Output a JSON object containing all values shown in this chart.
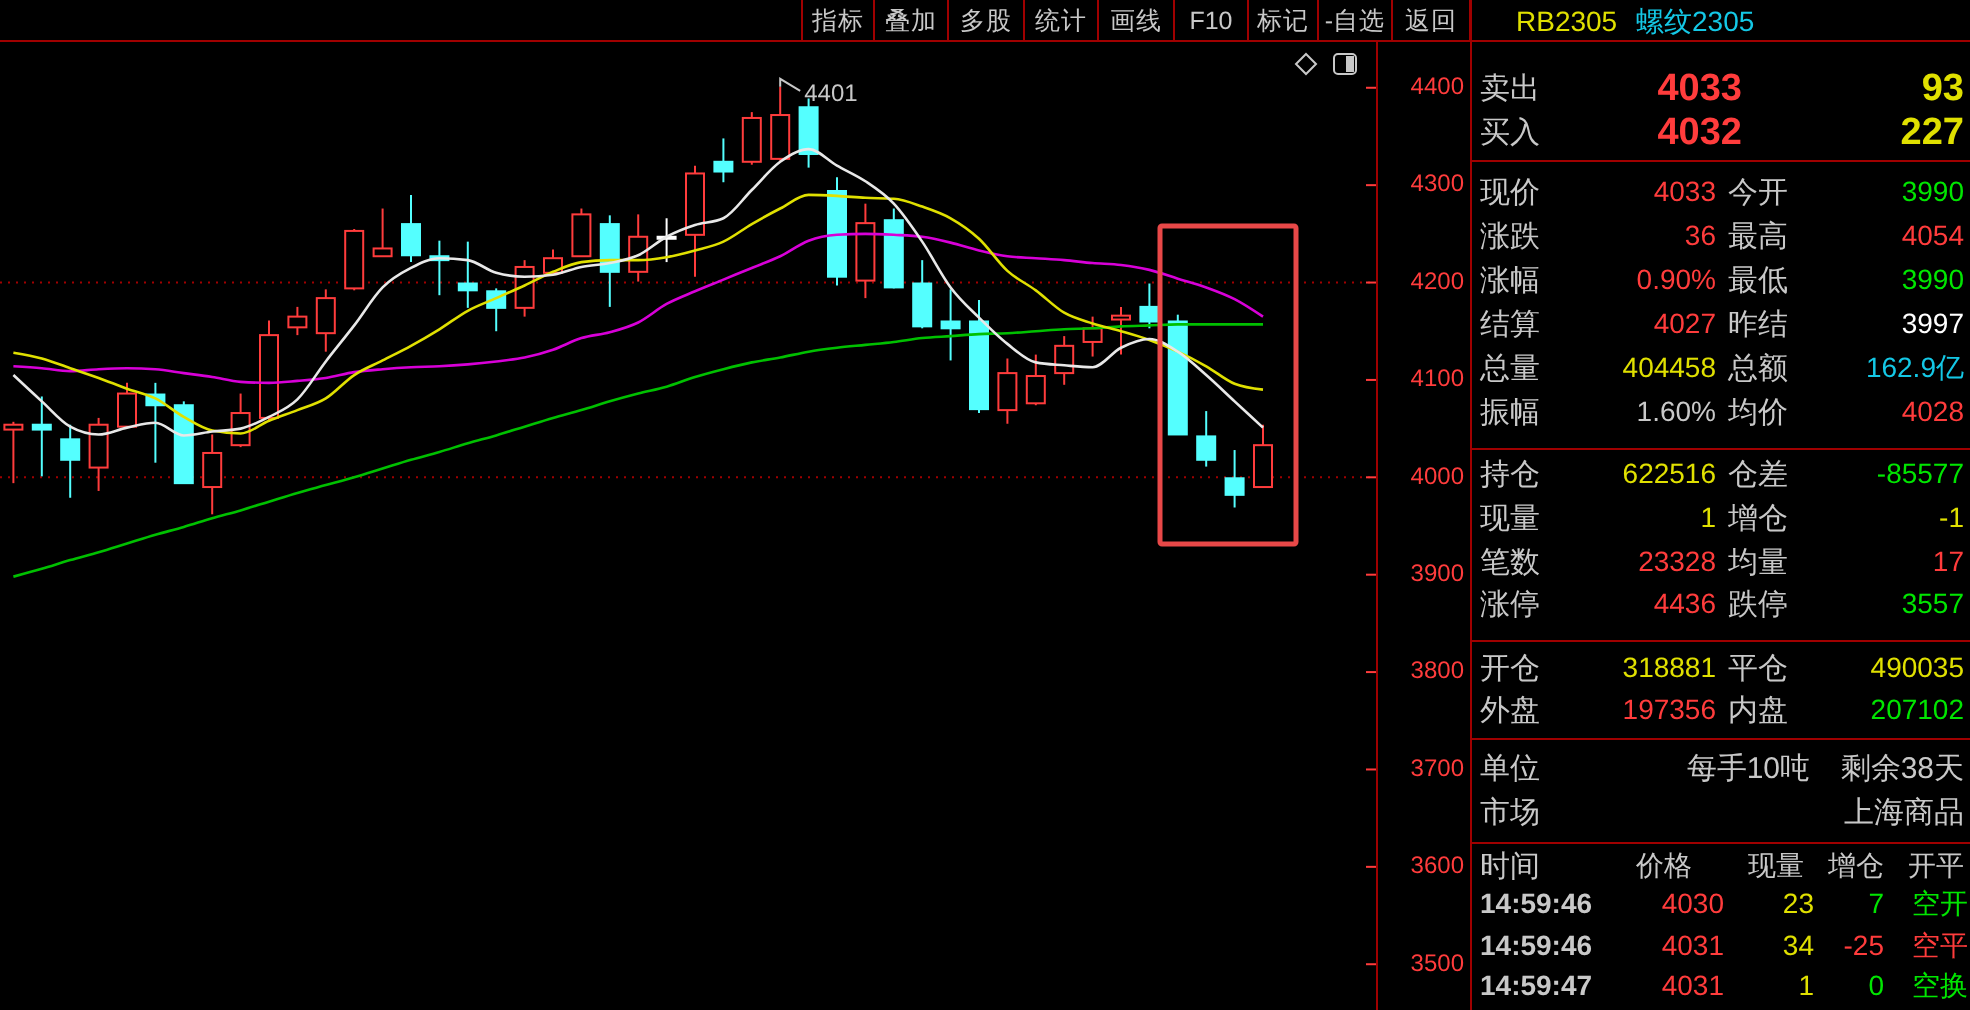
{
  "chart_data": [
    {
      "type": "candlestick",
      "categories": [
        null,
        null,
        null,
        null,
        null,
        null,
        null,
        null,
        null,
        null,
        null,
        null,
        null,
        null,
        null,
        null,
        null,
        null,
        null,
        null,
        null,
        null,
        null,
        null,
        null,
        null,
        null,
        null,
        null,
        null,
        null,
        null,
        null,
        null,
        null,
        null,
        null,
        null,
        null,
        null,
        null,
        null,
        null,
        null,
        null
      ],
      "ohlc": [
        [
          4049,
          4057,
          3994,
          4054
        ],
        [
          4054,
          4083,
          4001,
          4049
        ],
        [
          4039,
          4054,
          3979,
          4018
        ],
        [
          4010,
          4061,
          3986,
          4054
        ],
        [
          4052,
          4097,
          4052,
          4086
        ],
        [
          4085,
          4097,
          4015,
          4074
        ],
        [
          4074,
          4078,
          3994,
          3994
        ],
        [
          3990,
          4044,
          3962,
          4025
        ],
        [
          4033,
          4086,
          4031,
          4066
        ],
        [
          4061,
          4161,
          4057,
          4146
        ],
        [
          4154,
          4175,
          4146,
          4165
        ],
        [
          4148,
          4193,
          4129,
          4184
        ],
        [
          4194,
          4255,
          4192,
          4253
        ],
        [
          4227,
          4276,
          4227,
          4235
        ],
        [
          4260,
          4290,
          4221,
          4228
        ],
        [
          4227,
          4243,
          4187,
          4223
        ],
        [
          4199,
          4242,
          4174,
          4192
        ],
        [
          4191,
          4194,
          4150,
          4174
        ],
        [
          4174,
          4223,
          4165,
          4216
        ],
        [
          4210,
          4234,
          4208,
          4225
        ],
        [
          4227,
          4276,
          4227,
          4270
        ],
        [
          4260,
          4269,
          4175,
          4211
        ],
        [
          4211,
          4270,
          4201,
          4247
        ],
        [
          4247,
          4266,
          4221,
          4247
        ],
        [
          4249,
          4320,
          4206,
          4312
        ],
        [
          4324,
          4348,
          4303,
          4314
        ],
        [
          4324,
          4375,
          4321,
          4369
        ],
        [
          4327,
          4401,
          4325,
          4372
        ],
        [
          4380,
          4389,
          4318,
          4332
        ],
        [
          4294,
          4308,
          4197,
          4206
        ],
        [
          4202,
          4281,
          4184,
          4261
        ],
        [
          4264,
          4276,
          4194,
          4195
        ],
        [
          4199,
          4223,
          4153,
          4155
        ],
        [
          4160,
          4193,
          4120,
          4153
        ],
        [
          4160,
          4182,
          4066,
          4070
        ],
        [
          4069,
          4122,
          4055,
          4107
        ],
        [
          4076,
          4126,
          4074,
          4104
        ],
        [
          4107,
          4145,
          4095,
          4135
        ],
        [
          4139,
          4165,
          4124,
          4153
        ],
        [
          4162,
          4175,
          4126,
          4166
        ],
        [
          4175,
          4199,
          4153,
          4160
        ],
        [
          4160,
          4167,
          4044,
          4044
        ],
        [
          4042,
          4068,
          4011,
          4018
        ],
        [
          3999,
          4028,
          3969,
          3982
        ],
        [
          3990,
          4054,
          3990,
          4033
        ]
      ],
      "series": [
        {
          "type": "line",
          "color": "#00c000",
          "values": [
            3898,
            3906,
            3915,
            3923,
            3932,
            3941,
            3949,
            3958,
            3966,
            3975,
            3984,
            3992,
            4000,
            4009,
            4018,
            4026,
            4035,
            4043,
            4052,
            4061,
            4069,
            4078,
            4086,
            4093,
            4103,
            4111,
            4118,
            4123,
            4129,
            4133,
            4136,
            4139,
            4143,
            4145,
            4147,
            4148,
            4150,
            4152,
            4153,
            4155,
            4156,
            4157,
            4157,
            4157,
            4157
          ]
        },
        {
          "type": "line",
          "color": "#d800d8",
          "values": [
            4114,
            4112,
            4109,
            4111,
            4112,
            4111,
            4107,
            4103,
            4098,
            4097,
            4099,
            4102,
            4108,
            4111,
            4113,
            4114,
            4116,
            4119,
            4123,
            4131,
            4143,
            4149,
            4159,
            4178,
            4191,
            4203,
            4215,
            4227,
            4243,
            4249,
            4250,
            4249,
            4247,
            4241,
            4233,
            4227,
            4225,
            4223,
            4220,
            4218,
            4213,
            4204,
            4195,
            4183,
            4165
          ]
        },
        {
          "type": "line",
          "color": "#e0e000",
          "values": [
            4128,
            4122,
            4112,
            4102,
            4091,
            4081,
            4062,
            4048,
            4045,
            4058,
            4069,
            4081,
            4105,
            4120,
            4135,
            4152,
            4171,
            4184,
            4197,
            4211,
            4221,
            4223,
            4223,
            4226,
            4233,
            4242,
            4260,
            4276,
            4290,
            4289,
            4287,
            4286,
            4278,
            4266,
            4245,
            4212,
            4192,
            4169,
            4158,
            4150,
            4141,
            4129,
            4114,
            4096,
            4090
          ]
        },
        {
          "type": "line",
          "color": "#e8e8e8",
          "values": [
            4105,
            4078,
            4052,
            4044,
            4051,
            4056,
            4043,
            4047,
            4050,
            4062,
            4080,
            4119,
            4156,
            4195,
            4215,
            4225,
            4223,
            4210,
            4206,
            4208,
            4216,
            4220,
            4228,
            4247,
            4259,
            4266,
            4295,
            4324,
            4337,
            4320,
            4304,
            4281,
            4242,
            4195,
            4164,
            4137,
            4118,
            4115,
            4113,
            4133,
            4142,
            4129,
            4105,
            4078,
            4051
          ]
        }
      ],
      "ylim": [
        3453,
        4447
      ],
      "yticks": [
        3500,
        3600,
        3700,
        3800,
        3900,
        4000,
        4100,
        4200,
        4300,
        4400
      ],
      "tick_labels": "y",
      "ref_lines": [
        {
          "axis": "y",
          "value": 4200,
          "line_style": "dotted",
          "color": "#a00000"
        },
        {
          "axis": "y",
          "value": 4000,
          "line_style": "dotted",
          "color": "#a00000"
        }
      ],
      "annotations": [
        "指标",
        "叠加",
        "多股",
        "统计",
        "画线",
        "F10",
        "标记",
        "-自选",
        "返回",
        "4401"
      ]
    },
    {
      "type": "other",
      "title": "RB2305",
      "subtitle": "螺纹2305",
      "annotations": [
        "卖出",
        "4033",
        "93",
        "买入",
        "4032",
        "227",
        "现价",
        "4033",
        "今开",
        "3990",
        "涨跌",
        "36",
        "最高",
        "4054",
        "涨幅",
        "0.90%",
        "最低",
        "3990",
        "结算",
        "4027",
        "昨结",
        "3997",
        "总量",
        "404458",
        "总额",
        "162.9亿",
        "振幅",
        "1.60%",
        "均价",
        "4028",
        "持仓",
        "622516",
        "仓差",
        "-85577",
        "现量",
        "1",
        "增仓",
        "-1",
        "笔数",
        "23328",
        "均量",
        "17",
        "涨停",
        "4436",
        "跌停",
        "3557",
        "开仓",
        "318881",
        "平仓",
        "490035",
        "外盘",
        "197356",
        "内盘",
        "207102",
        "单位",
        "每手10吨",
        "剩余38天",
        "市场",
        "上海商品",
        "时间",
        "价格",
        "现量",
        "增仓",
        "开平",
        "14:59:46",
        "4030",
        "23",
        "7",
        "空开",
        "14:59:46",
        "4031",
        "34",
        "-25",
        "空平",
        "14:59:47",
        "4031",
        "1",
        "0",
        "空换"
      ]
    }
  ]
}
